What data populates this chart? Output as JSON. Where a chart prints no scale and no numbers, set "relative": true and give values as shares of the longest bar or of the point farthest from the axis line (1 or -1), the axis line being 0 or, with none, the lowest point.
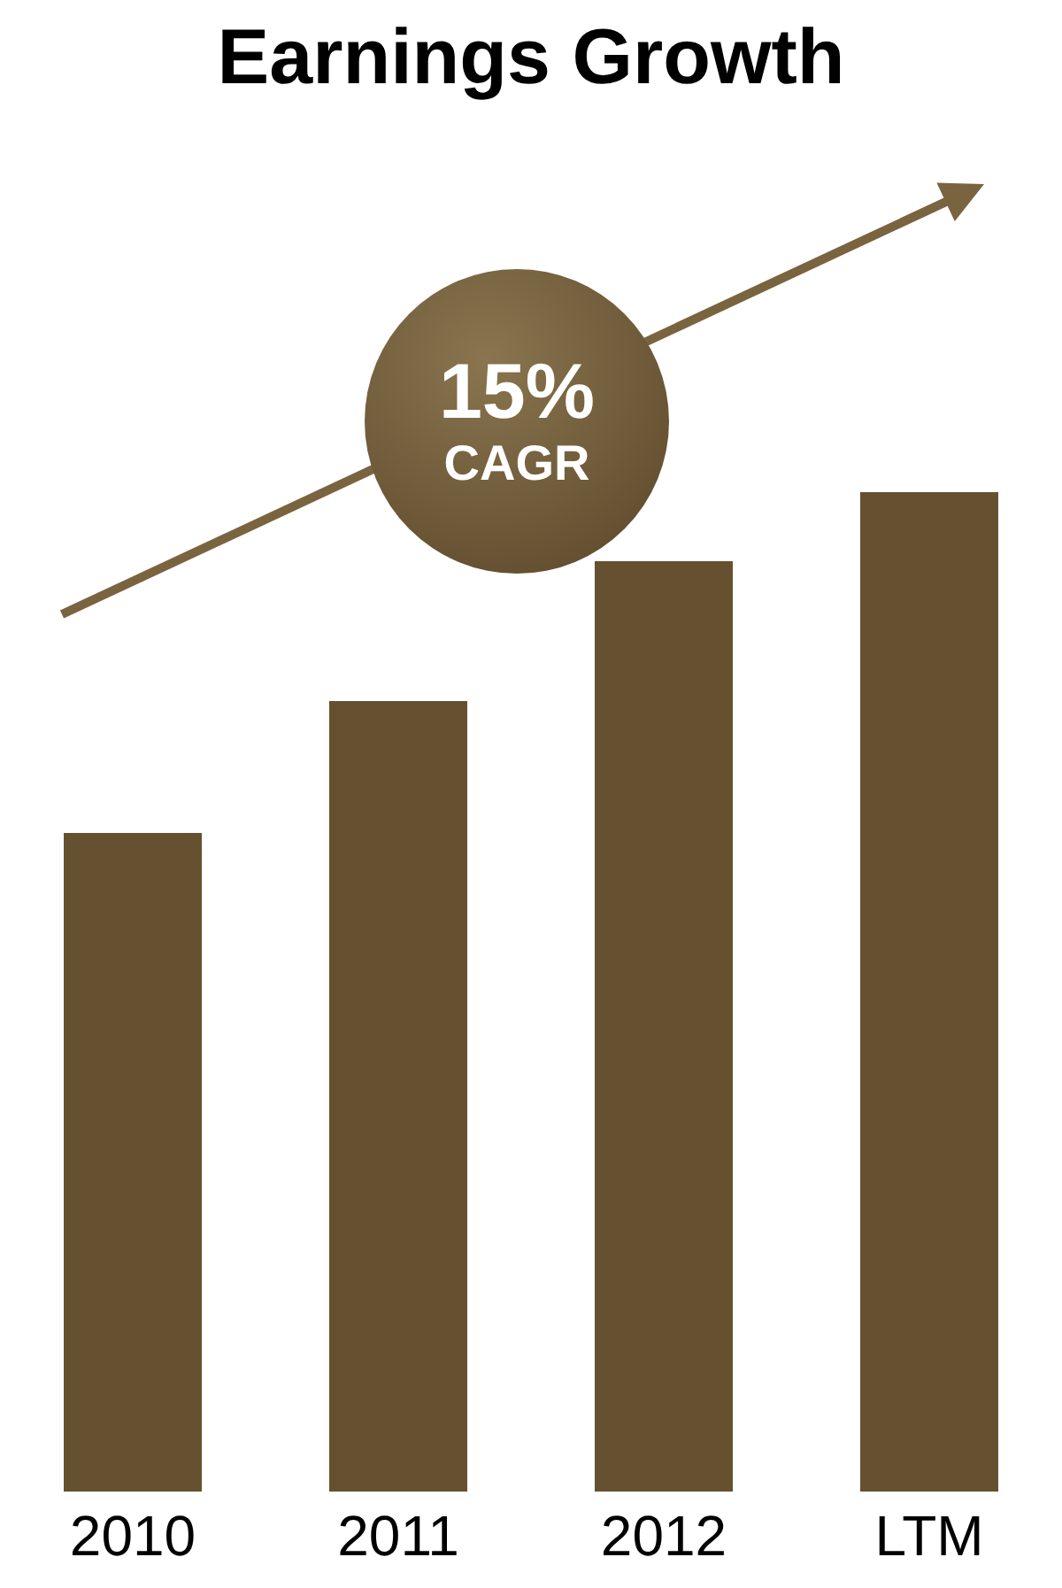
{
  "chart_data": {
    "type": "bar",
    "title": "Earnings Growth",
    "categories": [
      "2010",
      "2011",
      "2012",
      "LTM"
    ],
    "values": [
      0.659,
      0.791,
      0.931,
      1
    ],
    "relative": true,
    "color": "#65512f",
    "grid": false,
    "legend": false,
    "annotations": [
      "15%",
      "CAGR"
    ]
  }
}
